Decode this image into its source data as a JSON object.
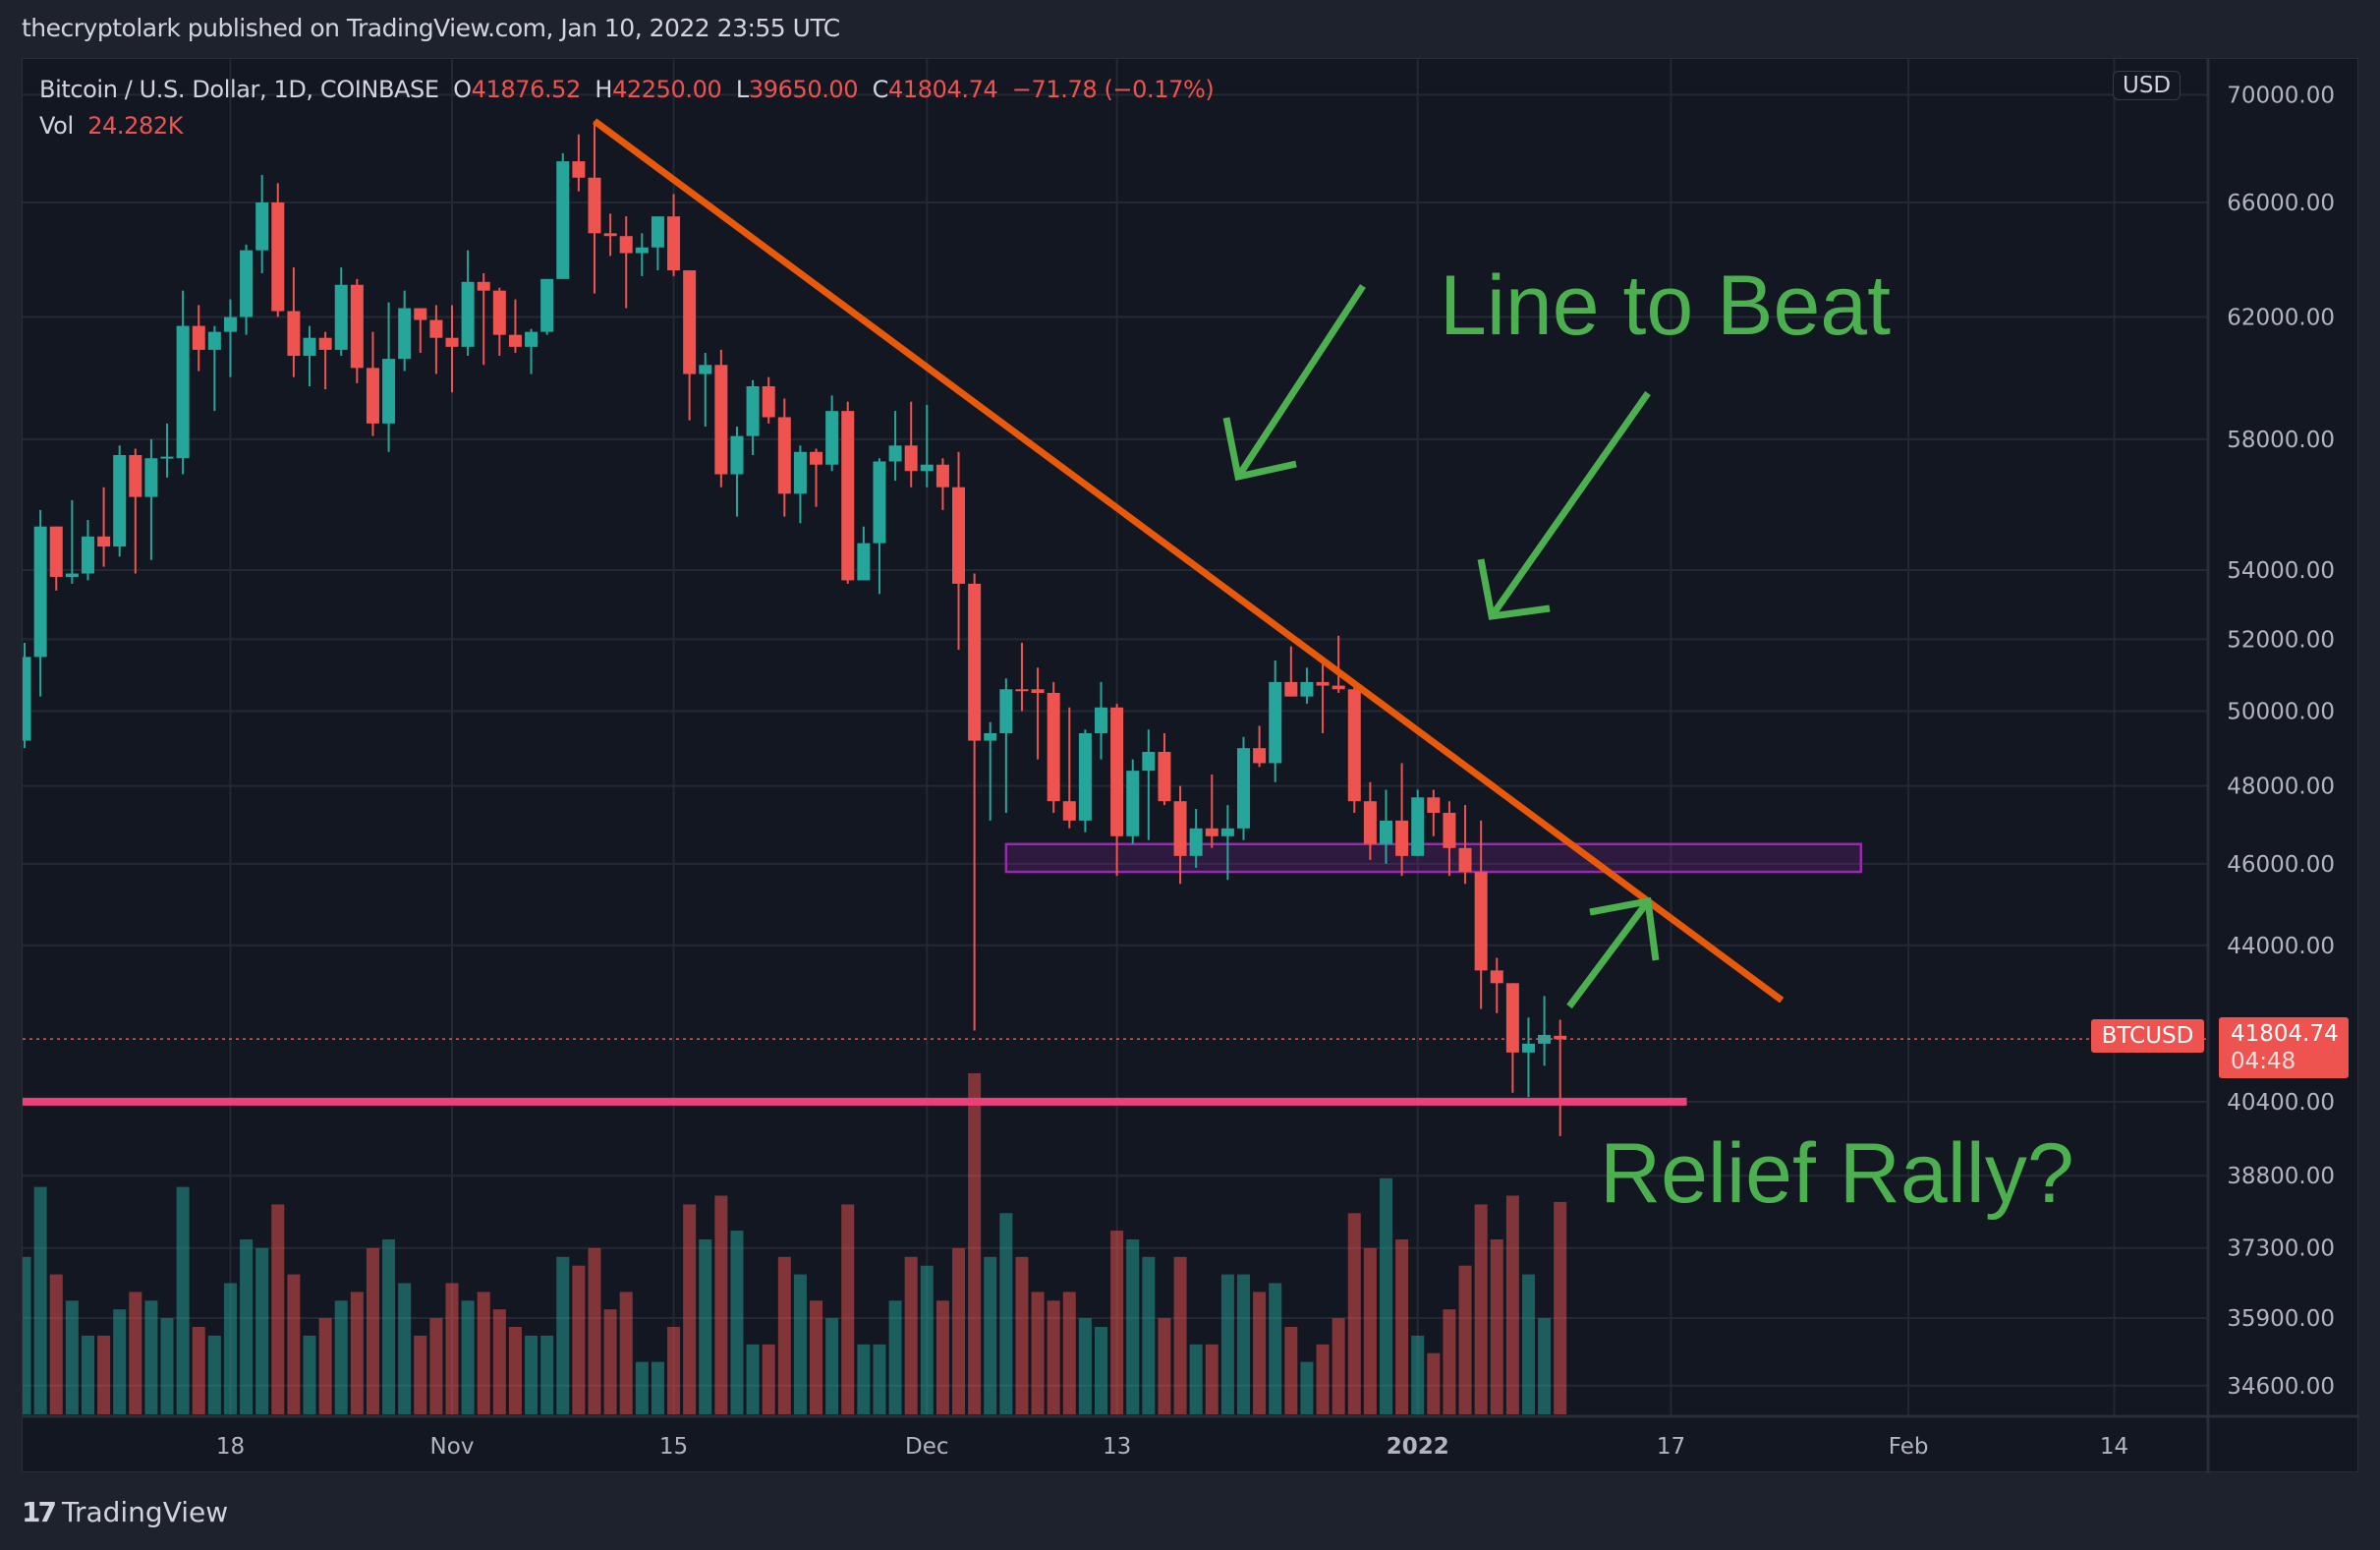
{
  "header": {
    "publisher_line": "thecryptolark published on TradingView.com, Jan 10, 2022 23:55 UTC"
  },
  "legend": {
    "symbol": "Bitcoin / U.S. Dollar, 1D, COINBASE",
    "o_label": "O",
    "o": "41876.52",
    "h_label": "H",
    "h": "42250.00",
    "l_label": "L",
    "l": "39650.00",
    "c_label": "C",
    "c": "41804.74",
    "change": "−71.78 (−0.17%)",
    "vol_label": "Vol",
    "vol": "24.282K"
  },
  "price_axis": {
    "currency": "USD",
    "symbol_label": "BTCUSD",
    "last_price": "41804.74",
    "countdown": "04:48"
  },
  "annotations": {
    "line_to_beat": "Line to Beat",
    "relief_rally": "Relief Rally?"
  },
  "footer": {
    "logo_mark": "17",
    "brand": "TradingView"
  },
  "colors": {
    "up": "#26a69a",
    "down": "#ef5350",
    "trendline": "#e8590c",
    "support": "#ec407a",
    "zone": "#9c27b0",
    "annotation": "#4caf50",
    "background": "#131722"
  },
  "chart_data": {
    "type": "candlestick",
    "scale": "log",
    "grid": true,
    "start_date": "2021-10-05",
    "interval": "1D",
    "ylim": [
      34000,
      70500
    ],
    "y_ticks": [
      "70000.00",
      "66000.00",
      "62000.00",
      "58000.00",
      "54000.00",
      "52000.00",
      "50000.00",
      "48000.00",
      "46000.00",
      "44000.00",
      "40400.00",
      "38800.00",
      "37300.00",
      "35900.00",
      "34600.00"
    ],
    "x_ticks": [
      {
        "label": "18",
        "date": "2021-10-18"
      },
      {
        "label": "Nov",
        "date": "2021-11-01"
      },
      {
        "label": "15",
        "date": "2021-11-15"
      },
      {
        "label": "Dec",
        "date": "2021-12-01"
      },
      {
        "label": "13",
        "date": "2021-12-13"
      },
      {
        "label": "2022",
        "date": "2022-01-01"
      },
      {
        "label": "17",
        "date": "2022-01-17"
      },
      {
        "label": "Feb",
        "date": "2022-02-01"
      },
      {
        "label": "14",
        "date": "2022-02-14"
      }
    ],
    "ohlcv_columns": [
      "open_k",
      "high_k",
      "low_k",
      "close_k",
      "volume_k"
    ],
    "ohlcv": [
      [
        49.2,
        51.9,
        49.0,
        51.5,
        18
      ],
      [
        51.5,
        55.8,
        50.4,
        55.3,
        26
      ],
      [
        55.3,
        55.3,
        53.4,
        53.8,
        16
      ],
      [
        53.8,
        56.1,
        53.6,
        53.9,
        13
      ],
      [
        53.9,
        55.5,
        53.7,
        55.0,
        9
      ],
      [
        55.0,
        56.5,
        54.1,
        54.7,
        9
      ],
      [
        54.7,
        57.8,
        54.4,
        57.5,
        12
      ],
      [
        57.5,
        57.7,
        53.9,
        56.2,
        14
      ],
      [
        56.2,
        58.0,
        54.3,
        57.4,
        13
      ],
      [
        57.4,
        58.5,
        56.8,
        57.45,
        11
      ],
      [
        57.4,
        62.9,
        56.9,
        61.7,
        26
      ],
      [
        61.7,
        62.4,
        60.2,
        60.9,
        10
      ],
      [
        60.9,
        61.7,
        58.9,
        61.5,
        9
      ],
      [
        61.5,
        62.6,
        60.0,
        62.0,
        15
      ],
      [
        62.0,
        64.5,
        61.4,
        64.3,
        20
      ],
      [
        64.3,
        67.0,
        63.5,
        66.0,
        19
      ],
      [
        66.0,
        66.7,
        62.0,
        62.2,
        24
      ],
      [
        62.2,
        63.7,
        60.0,
        60.7,
        16
      ],
      [
        60.7,
        61.7,
        59.7,
        61.3,
        9
      ],
      [
        61.3,
        61.5,
        59.6,
        60.9,
        11
      ],
      [
        60.9,
        63.7,
        60.7,
        63.1,
        13
      ],
      [
        63.1,
        63.3,
        59.8,
        60.3,
        14
      ],
      [
        60.3,
        61.5,
        58.1,
        58.5,
        19
      ],
      [
        58.5,
        62.5,
        57.6,
        60.6,
        20
      ],
      [
        60.6,
        62.9,
        60.2,
        62.3,
        15
      ],
      [
        62.3,
        62.3,
        60.8,
        61.9,
        9
      ],
      [
        61.9,
        62.4,
        60.1,
        61.3,
        11
      ],
      [
        61.3,
        62.4,
        59.5,
        61.0,
        15
      ],
      [
        61.0,
        64.3,
        60.7,
        63.2,
        13
      ],
      [
        63.2,
        63.5,
        60.4,
        62.9,
        14
      ],
      [
        62.9,
        63.0,
        60.7,
        61.4,
        12
      ],
      [
        61.4,
        62.6,
        60.8,
        61.0,
        10
      ],
      [
        61.0,
        61.6,
        60.1,
        61.5,
        9
      ],
      [
        61.5,
        63.3,
        61.4,
        63.3,
        9
      ],
      [
        63.3,
        67.8,
        63.3,
        67.5,
        18
      ],
      [
        67.5,
        68.5,
        66.4,
        66.9,
        17
      ],
      [
        66.9,
        69.0,
        62.8,
        64.9,
        19
      ],
      [
        64.9,
        65.6,
        64.1,
        64.8,
        12
      ],
      [
        64.8,
        65.5,
        62.3,
        64.2,
        14
      ],
      [
        64.2,
        64.9,
        63.4,
        64.4,
        6
      ],
      [
        64.4,
        65.5,
        63.6,
        65.5,
        6
      ],
      [
        65.5,
        66.3,
        63.4,
        63.6,
        10
      ],
      [
        63.6,
        63.6,
        58.6,
        60.1,
        24
      ],
      [
        60.1,
        60.8,
        58.4,
        60.4,
        20
      ],
      [
        60.4,
        60.9,
        56.5,
        56.9,
        25
      ],
      [
        56.9,
        58.4,
        55.6,
        58.1,
        21
      ],
      [
        58.1,
        59.9,
        57.5,
        59.7,
        8
      ],
      [
        59.7,
        60.0,
        58.5,
        58.7,
        8
      ],
      [
        58.7,
        59.3,
        55.6,
        56.3,
        18
      ],
      [
        56.3,
        57.8,
        55.4,
        57.6,
        16
      ],
      [
        57.6,
        57.7,
        55.9,
        57.2,
        13
      ],
      [
        57.2,
        59.4,
        57.0,
        58.9,
        11
      ],
      [
        58.9,
        59.2,
        53.6,
        53.7,
        24
      ],
      [
        53.7,
        55.3,
        53.7,
        54.8,
        8
      ],
      [
        54.8,
        57.4,
        53.3,
        57.3,
        8
      ],
      [
        57.3,
        58.9,
        56.7,
        57.8,
        13
      ],
      [
        57.8,
        59.2,
        56.5,
        57.0,
        18
      ],
      [
        57.0,
        59.1,
        56.5,
        57.2,
        17
      ],
      [
        57.2,
        57.4,
        55.8,
        56.5,
        13
      ],
      [
        56.5,
        57.6,
        51.7,
        53.6,
        19
      ],
      [
        53.6,
        53.9,
        42.0,
        49.2,
        39
      ],
      [
        49.2,
        49.7,
        47.1,
        49.4,
        18
      ],
      [
        49.4,
        50.9,
        47.3,
        50.6,
        23
      ],
      [
        50.6,
        51.9,
        50.0,
        50.55,
        18
      ],
      [
        50.6,
        51.2,
        48.7,
        50.5,
        14
      ],
      [
        50.5,
        50.8,
        47.3,
        47.6,
        13
      ],
      [
        47.6,
        50.1,
        46.9,
        47.1,
        14
      ],
      [
        47.1,
        49.5,
        46.8,
        49.4,
        11
      ],
      [
        49.4,
        50.8,
        48.7,
        50.1,
        10
      ],
      [
        50.1,
        50.2,
        45.7,
        46.7,
        21
      ],
      [
        46.7,
        48.7,
        46.5,
        48.4,
        20
      ],
      [
        48.4,
        49.5,
        46.6,
        48.9,
        18
      ],
      [
        48.9,
        49.4,
        47.5,
        47.6,
        11
      ],
      [
        47.6,
        48.0,
        45.5,
        46.2,
        18
      ],
      [
        46.2,
        47.4,
        45.9,
        46.9,
        8
      ],
      [
        46.9,
        48.3,
        46.4,
        46.7,
        8
      ],
      [
        46.7,
        47.5,
        45.6,
        46.9,
        16
      ],
      [
        46.9,
        49.3,
        46.6,
        49.0,
        16
      ],
      [
        49.0,
        49.6,
        48.5,
        48.6,
        14
      ],
      [
        48.6,
        51.4,
        48.1,
        50.8,
        15
      ],
      [
        50.8,
        51.8,
        50.4,
        50.4,
        10
      ],
      [
        50.4,
        51.2,
        50.2,
        50.8,
        6
      ],
      [
        50.8,
        51.3,
        49.4,
        50.7,
        8
      ],
      [
        50.7,
        52.1,
        50.5,
        50.6,
        11
      ],
      [
        50.6,
        50.7,
        47.3,
        47.6,
        23
      ],
      [
        47.6,
        48.1,
        46.1,
        46.5,
        19
      ],
      [
        46.5,
        47.9,
        46.0,
        47.1,
        27
      ],
      [
        47.1,
        48.6,
        45.7,
        46.2,
        20
      ],
      [
        46.2,
        47.9,
        46.2,
        47.7,
        9
      ],
      [
        47.7,
        47.9,
        46.7,
        47.3,
        7
      ],
      [
        47.3,
        47.6,
        45.7,
        46.4,
        12
      ],
      [
        46.4,
        47.5,
        45.5,
        45.8,
        17
      ],
      [
        45.8,
        47.1,
        42.5,
        43.4,
        24
      ],
      [
        43.4,
        43.7,
        42.4,
        43.1,
        20
      ],
      [
        43.1,
        43.1,
        40.6,
        41.5,
        25
      ],
      [
        41.5,
        42.3,
        40.5,
        41.7,
        16
      ],
      [
        41.7,
        42.8,
        41.2,
        41.9,
        11
      ],
      [
        41.88,
        42.25,
        39.65,
        41.8,
        24.282
      ]
    ],
    "drawings": {
      "trendline": {
        "from": {
          "date": "2021-11-10",
          "price": 69000
        },
        "to": {
          "date": "2022-01-24",
          "price": 42700
        }
      },
      "support_line": {
        "price": 40400,
        "from_date": "2021-10-05",
        "to_date": "2022-01-18"
      },
      "zone": {
        "from_date": "2021-12-06",
        "to_date": "2022-01-29",
        "price_low": 45800,
        "price_high": 46500
      }
    }
  }
}
